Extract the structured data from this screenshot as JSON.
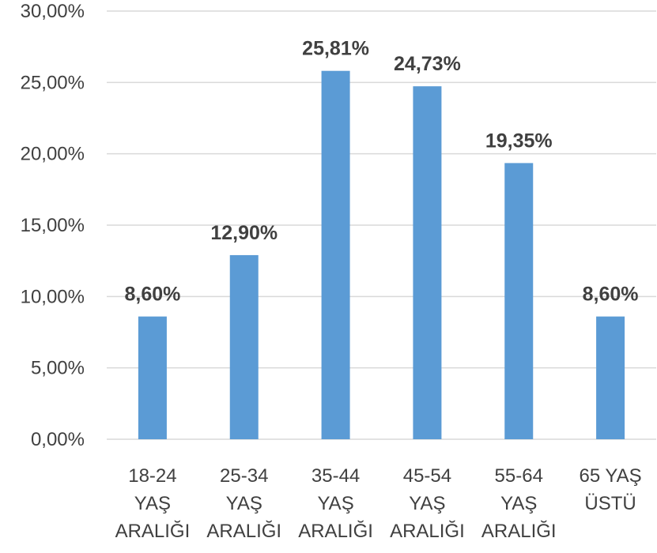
{
  "chart_data": {
    "type": "bar",
    "categories": [
      [
        "18-24",
        "YAŞ",
        "ARALIĞI"
      ],
      [
        "25-34",
        "YAŞ",
        "ARALIĞI"
      ],
      [
        "35-44",
        "YAŞ",
        "ARALIĞI"
      ],
      [
        "45-54",
        "YAŞ",
        "ARALIĞI"
      ],
      [
        "55-64",
        "YAŞ",
        "ARALIĞI"
      ],
      [
        "65 YAŞ",
        "ÜSTÜ"
      ]
    ],
    "values": [
      8.6,
      12.9,
      25.81,
      24.73,
      19.35,
      8.6
    ],
    "data_labels": [
      "8,60%",
      "12,90%",
      "25,81%",
      "24,73%",
      "19,35%",
      "8,60%"
    ],
    "ylim": [
      0,
      30
    ],
    "y_ticks": [
      0,
      5,
      10,
      15,
      20,
      25,
      30
    ],
    "y_tick_labels": [
      "0,00%",
      "5,00%",
      "10,00%",
      "15,00%",
      "20,00%",
      "25,00%",
      "30,00%"
    ],
    "grid": true,
    "legend": "none",
    "colors": {
      "bar": "#5B9BD5",
      "grid": "#D9D9D9",
      "text": "#404040"
    }
  }
}
